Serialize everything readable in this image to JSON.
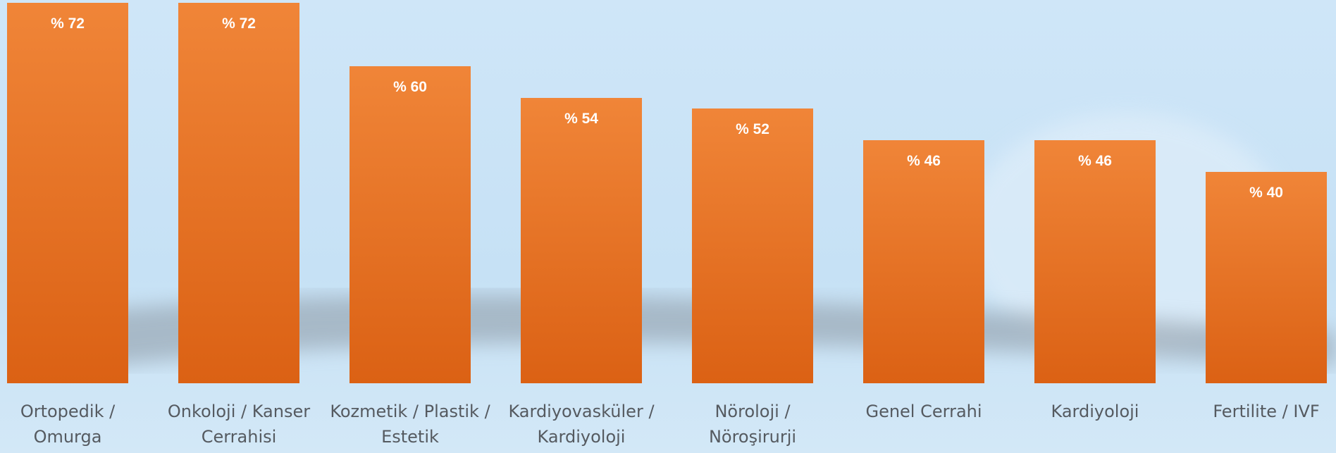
{
  "chart_data": {
    "type": "bar",
    "categories": [
      "Ortopedik / Omurga",
      "Onkoloji / Kanser Cerrahisi",
      "Kozmetik / Plastik / Estetik",
      "Kardiyovasküler / Kardiyoloji",
      "Nöroloji / Nöroşirurji",
      "Genel Cerrahi",
      "Kardiyoloji",
      "Fertilite / IVF"
    ],
    "values": [
      72,
      72,
      60,
      54,
      52,
      46,
      46,
      40
    ],
    "value_labels": [
      "% 72",
      "% 72",
      "% 60",
      "% 54",
      "% 52",
      "% 46",
      "% 46",
      "% 40"
    ],
    "color": "#e8722a"
  }
}
